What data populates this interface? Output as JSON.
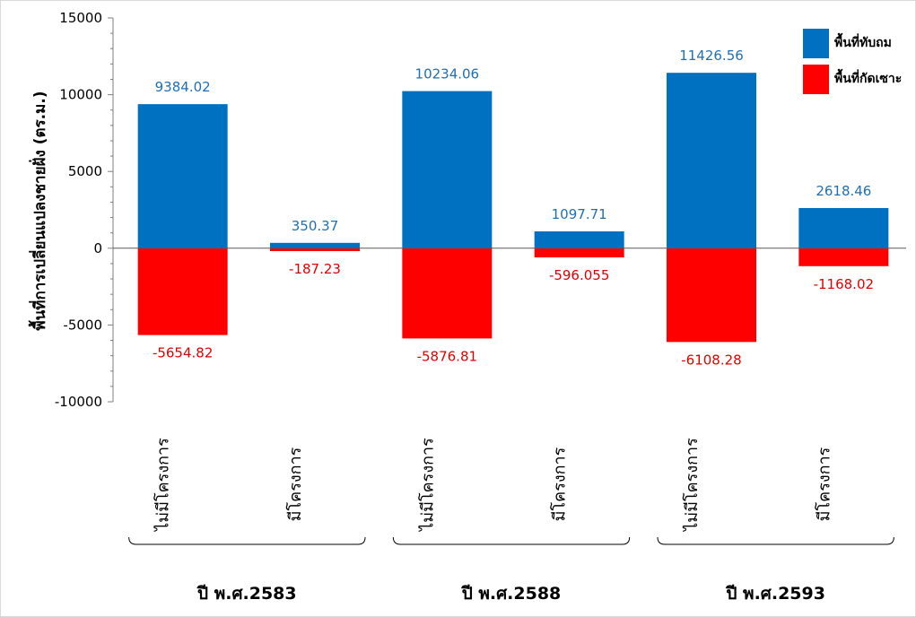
{
  "chart_data": {
    "type": "bar",
    "title": "",
    "ylabel": "พื้นที่การเปลี่ยนแปลงชายฝั่ง (ตร.ม.)",
    "ylim": [
      -10000,
      15000
    ],
    "yticks": [
      15000,
      10000,
      5000,
      0,
      -5000,
      -10000
    ],
    "categories": [
      "ไม่มีโครงการ",
      "มีโครงการ",
      "ไม่มีโครงการ",
      "มีโครงการ",
      "ไม่มีโครงการ",
      "มีโครงการ"
    ],
    "groups": [
      {
        "label": "ปี พ.ศ.2583",
        "span": [
          0,
          1
        ]
      },
      {
        "label": "ปี พ.ศ.2588",
        "span": [
          2,
          3
        ]
      },
      {
        "label": "ปี พ.ศ.2593",
        "span": [
          4,
          5
        ]
      }
    ],
    "series": [
      {
        "name": "พื้นที่ทับถม",
        "color": "#0070C0",
        "label_color": "#1F6FB5",
        "values": [
          9384.02,
          350.37,
          10234.06,
          1097.71,
          11426.56,
          2618.46
        ],
        "labels": [
          "9384.02",
          "350.37",
          "10234.06",
          "1097.71",
          "11426.56",
          "2618.46"
        ]
      },
      {
        "name": "พื้นที่กัดเซาะ",
        "color": "#FF0000",
        "label_color": "#E00000",
        "values": [
          -5654.82,
          -187.23,
          -5876.81,
          -596.055,
          -6108.28,
          -1168.02
        ],
        "labels": [
          "-5654.82",
          "-187.23",
          "-5876.81",
          "-596.055",
          "-6108.28",
          "-1168.02"
        ]
      }
    ],
    "legend": "top-right"
  }
}
